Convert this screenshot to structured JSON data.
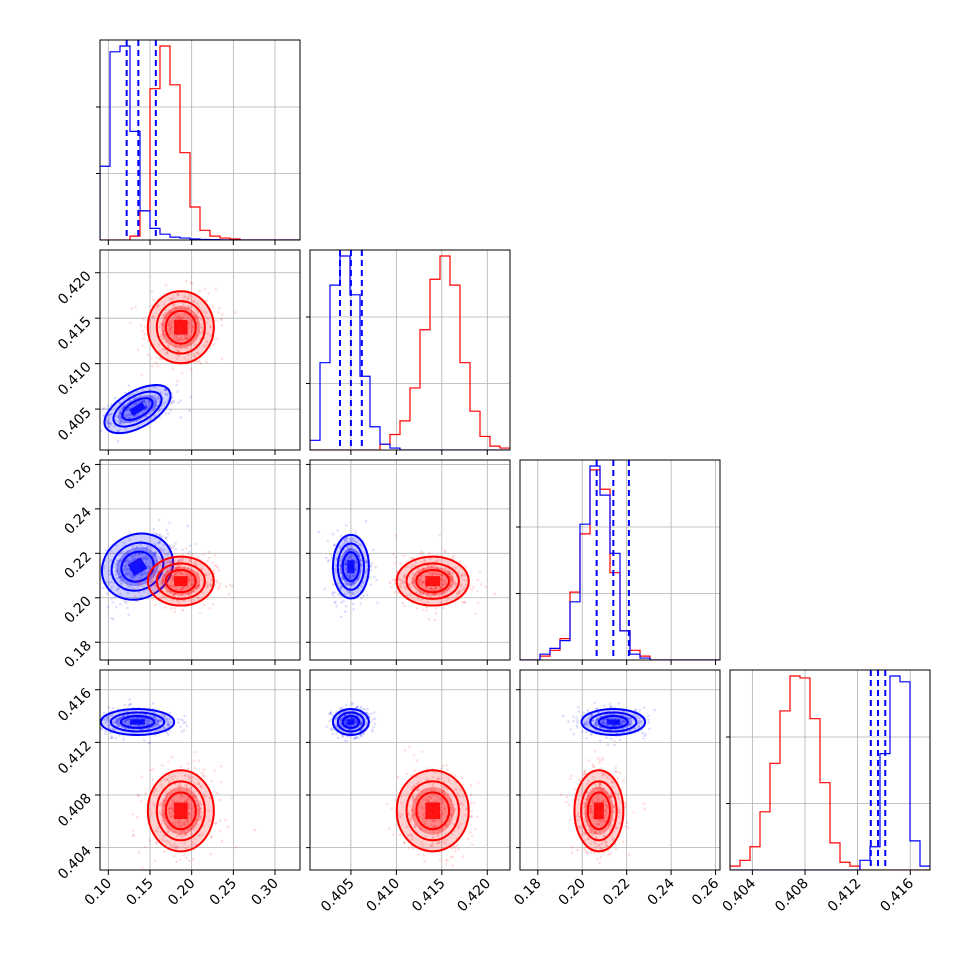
{
  "chart_data": {
    "type": "corner",
    "parameters": [
      {
        "range": [
          0.09,
          0.33
        ],
        "ticks": [
          "0.10",
          "0.15",
          "0.20",
          "0.25",
          "0.30"
        ]
      },
      {
        "range": [
          0.4005,
          0.4225
        ],
        "ticks": [
          "0.405",
          "0.410",
          "0.415",
          "0.420"
        ]
      },
      {
        "range": [
          0.172,
          0.262
        ],
        "ticks": [
          "0.18",
          "0.20",
          "0.22",
          "0.24",
          "0.26"
        ]
      },
      {
        "range": [
          0.4023,
          0.4175
        ],
        "ticks": [
          "0.404",
          "0.408",
          "0.412",
          "0.416"
        ]
      }
    ],
    "series": [
      {
        "color": "#0000ff",
        "mean": [
          0.135,
          0.405,
          0.214,
          0.41355
        ],
        "sd": [
          0.02,
          0.0009,
          0.0065,
          0.00045
        ],
        "quantiles": [
          [
            0.122,
            0.136,
            0.157
          ],
          [
            0.4038,
            0.405,
            0.4062
          ],
          [
            0.2065,
            0.214,
            0.221
          ],
          [
            0.413,
            0.41355,
            0.4141
          ]
        ]
      },
      {
        "color": "#ff0000",
        "mean": [
          0.187,
          0.414,
          0.2075,
          0.4068
        ],
        "sd": [
          0.018,
          0.0018,
          0.005,
          0.0014
        ]
      }
    ],
    "hist_blue": [
      [
        0.38,
        0.97,
        1.0,
        0.56,
        0.15,
        0.06,
        0.03,
        0.015,
        0.01,
        0.005,
        0.003,
        0.002,
        0.001,
        0,
        0,
        0,
        0,
        0,
        0,
        0
      ],
      [
        0.05,
        0.45,
        0.85,
        1.0,
        0.8,
        0.38,
        0.12,
        0.03,
        0.01,
        0,
        0,
        0,
        0,
        0,
        0,
        0,
        0,
        0,
        0,
        0
      ],
      [
        0,
        0,
        0.03,
        0.06,
        0.1,
        0.3,
        0.7,
        1.0,
        0.85,
        0.55,
        0.15,
        0.03,
        0.01,
        0,
        0,
        0,
        0,
        0,
        0,
        0
      ],
      [
        0,
        0,
        0,
        0,
        0,
        0,
        0,
        0,
        0,
        0,
        0,
        0,
        0,
        0.05,
        0.12,
        0.6,
        1.0,
        0.97,
        0.15,
        0.02
      ]
    ],
    "hist_red": [
      [
        0,
        0,
        0,
        0.02,
        0.15,
        0.78,
        1.0,
        0.8,
        0.45,
        0.17,
        0.05,
        0.02,
        0.01,
        0.005,
        0,
        0,
        0,
        0,
        0,
        0
      ],
      [
        0,
        0,
        0,
        0,
        0,
        0,
        0,
        0.03,
        0.08,
        0.15,
        0.32,
        0.62,
        0.88,
        1.0,
        0.85,
        0.45,
        0.2,
        0.07,
        0.02,
        0.01
      ],
      [
        0,
        0,
        0.02,
        0.05,
        0.11,
        0.35,
        0.65,
        0.98,
        0.88,
        0.45,
        0.15,
        0.05,
        0.02,
        0,
        0,
        0,
        0,
        0,
        0,
        0
      ],
      [
        0.02,
        0.05,
        0.12,
        0.3,
        0.55,
        0.82,
        1.0,
        0.99,
        0.78,
        0.45,
        0.14,
        0.04,
        0.02,
        0,
        0,
        0,
        0,
        0,
        0,
        0
      ]
    ]
  }
}
